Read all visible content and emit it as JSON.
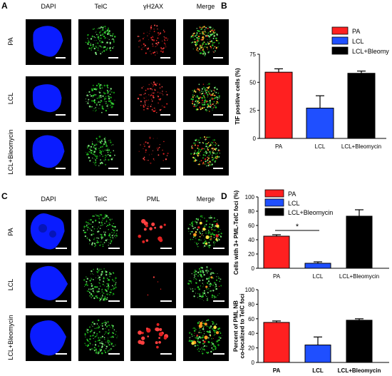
{
  "panels": {
    "A": {
      "letter": "A",
      "columns": [
        "DAPI",
        "TelC",
        "γH2AX",
        "Merge"
      ],
      "rows": [
        "PA",
        "LCL",
        "LCL+Bleomycin"
      ]
    },
    "C": {
      "letter": "C",
      "columns": [
        "DAPI",
        "TelC",
        "PML",
        "Merge"
      ],
      "rows": [
        "PA",
        "LCL",
        "LCL+Bleomycin"
      ]
    }
  },
  "colors": {
    "PA": "#ff2020",
    "LCL": "#1f4fff",
    "LCL+Bleomycin": "#000000",
    "dapi": "#0a1cff",
    "telc": "#22c222",
    "h2ax": "#e02020"
  },
  "chart_data": [
    {
      "id": "B",
      "letter": "B",
      "type": "bar",
      "categories": [
        "PA",
        "LCL",
        "LCL+Bleomycin"
      ],
      "values": [
        59,
        27,
        58
      ],
      "errors": [
        3,
        11,
        2
      ],
      "ylabel": "TIF positive cells (%)",
      "ylim": [
        0,
        75
      ],
      "yticks": [
        "0",
        "25",
        "50",
        "75"
      ],
      "legend": [
        "PA",
        "LCL",
        "LCL+Bleomycin"
      ],
      "legend_position": "top-left",
      "grid": false
    },
    {
      "id": "D1",
      "letter": "D",
      "type": "bar",
      "categories": [
        "PA",
        "LCL",
        "LCL+Bleomycin"
      ],
      "values": [
        45,
        7,
        73
      ],
      "errors": [
        2,
        2,
        9
      ],
      "ylabel": "Cells with 3+ PML-TelC foci (%)",
      "ylim": [
        0,
        100
      ],
      "yticks": [
        "0",
        "20",
        "40",
        "60",
        "80",
        "100"
      ],
      "legend": [
        "PA",
        "LCL",
        "LCL+Bleomycin"
      ],
      "legend_position": "top-left",
      "annotation": "*",
      "grid": false
    },
    {
      "id": "D2",
      "type": "bar",
      "categories": [
        "PA",
        "LCL",
        "LCL+Bleomycin"
      ],
      "values": [
        55,
        24,
        58
      ],
      "errors": [
        2,
        11,
        2
      ],
      "ylabel": "Percent of PML NB co-localized to TelC foci",
      "ylim": [
        0,
        100
      ],
      "yticks": [
        "0",
        "20",
        "40",
        "60",
        "80",
        "100"
      ],
      "grid": false
    }
  ]
}
